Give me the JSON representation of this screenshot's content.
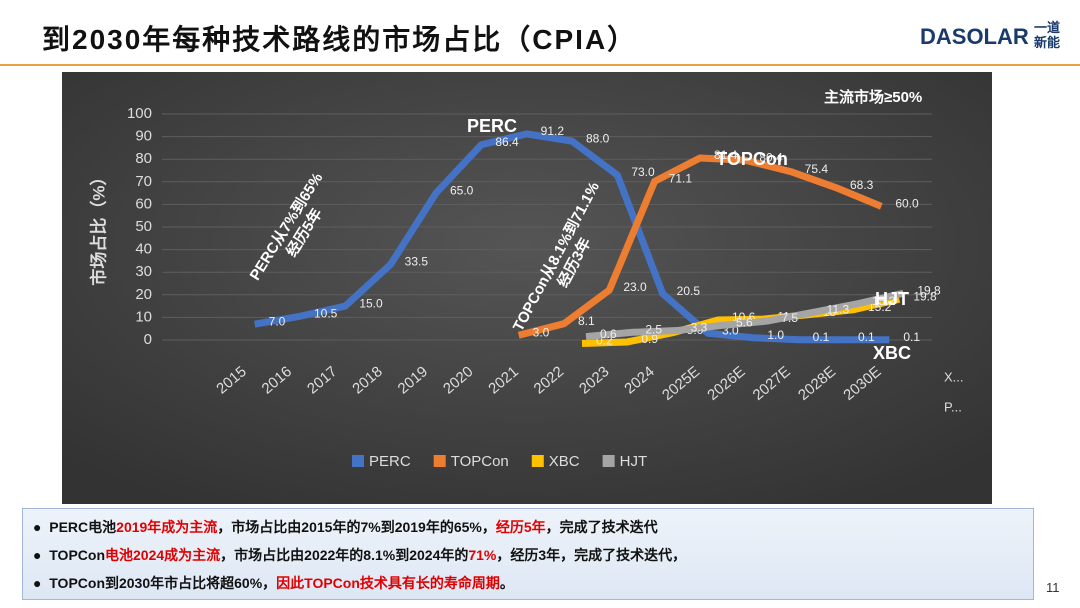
{
  "slide": {
    "title": "到2030年每种技术路线的市场占比（CPIA）",
    "logo": "DASOLAR",
    "logo_cn": [
      "一道",
      "新能"
    ],
    "page_number": "11",
    "bullets": [
      [
        {
          "text": "PERC电池",
          "red": false
        },
        {
          "text": "2019年成为主流",
          "red": true
        },
        {
          "text": "，市场占比由2015年的7%到2019年的65%，",
          "red": false
        },
        {
          "text": "经历5年",
          "red": true
        },
        {
          "text": "，完成了技术迭代",
          "red": false
        }
      ],
      [
        {
          "text": "TOPCon",
          "red": false
        },
        {
          "text": "电池2024成为主流",
          "red": true
        },
        {
          "text": "，市场占比由2022年的8.1%到2024年的",
          "red": false
        },
        {
          "text": "71%",
          "red": true
        },
        {
          "text": "，经历3年，完成了技术迭代，",
          "red": false
        }
      ],
      [
        {
          "text": "TOPCon到2030年市占比将超60%，",
          "red": false
        },
        {
          "text": "因此TOPCon技术具有长的寿命周期",
          "red": true
        },
        {
          "text": "。",
          "red": false
        }
      ]
    ]
  },
  "chart_data": {
    "type": "line",
    "y_label": "市场占比（%）",
    "annotations": [
      [
        "PERC从7%到65%",
        "经历5年"
      ],
      [
        "TOPCon从8.1%到71.1%",
        "经历3年"
      ],
      [
        "主流市场≥50%"
      ]
    ],
    "depth_labels": [
      "X...",
      "P..."
    ],
    "categories": [
      "2015",
      "2016",
      "2017",
      "2018",
      "2019",
      "2020",
      "2021",
      "2022",
      "2023",
      "2024",
      "2025E",
      "2026E",
      "2027E",
      "2028E",
      "2030E"
    ],
    "ylim": [
      0,
      100
    ],
    "yticks": [
      0,
      10,
      20,
      30,
      40,
      50,
      60,
      70,
      80,
      90,
      100
    ],
    "series": [
      {
        "name": "PERC",
        "color": "#4472c4",
        "values": [
          7,
          10.5,
          15,
          33.5,
          65,
          86.4,
          91.2,
          88,
          73,
          20.5,
          3,
          1,
          0.1,
          0.1,
          0.1
        ],
        "value_labels": [
          "7.0",
          "10.5",
          "15.0",
          "33.5",
          "65.0",
          "86.4",
          "91.2",
          "88.0",
          "73.0",
          "20.5",
          "3.0",
          "1.0",
          "0.1",
          "0.1",
          "0.1"
        ]
      },
      {
        "name": "TOPCon",
        "color": "#ed7d31",
        "values": [
          null,
          null,
          null,
          null,
          null,
          null,
          3,
          8.1,
          23,
          71.1,
          81.4,
          80.4,
          75.4,
          68.3,
          60
        ],
        "value_labels": [
          null,
          null,
          null,
          null,
          null,
          null,
          "3.0",
          "8.1",
          "23.0",
          "71.1",
          "81.4",
          "80.4",
          "75.4",
          "68.3",
          "60.0"
        ]
      },
      {
        "name": "XBC",
        "color": "#ffc000",
        "values": [
          null,
          null,
          null,
          null,
          null,
          null,
          null,
          0.2,
          0.9,
          5,
          10.6,
          11,
          13,
          15.2,
          19.8
        ],
        "value_labels": [
          null,
          null,
          null,
          null,
          null,
          null,
          null,
          "0.2",
          "0.9",
          "5.0",
          "10.6",
          "11",
          "13",
          "15.2",
          "19.8"
        ]
      },
      {
        "name": "HJT",
        "color": "#a5a5a5",
        "values": [
          null,
          null,
          null,
          null,
          null,
          null,
          null,
          0.6,
          2.5,
          3.3,
          5.6,
          7.5,
          11.3,
          15.2,
          19.8
        ],
        "value_labels": [
          null,
          null,
          null,
          null,
          null,
          null,
          null,
          "0.6",
          "2.5",
          "3.3",
          "5.6",
          "7.5",
          "11.3",
          "15.2",
          "19.8"
        ]
      }
    ]
  }
}
